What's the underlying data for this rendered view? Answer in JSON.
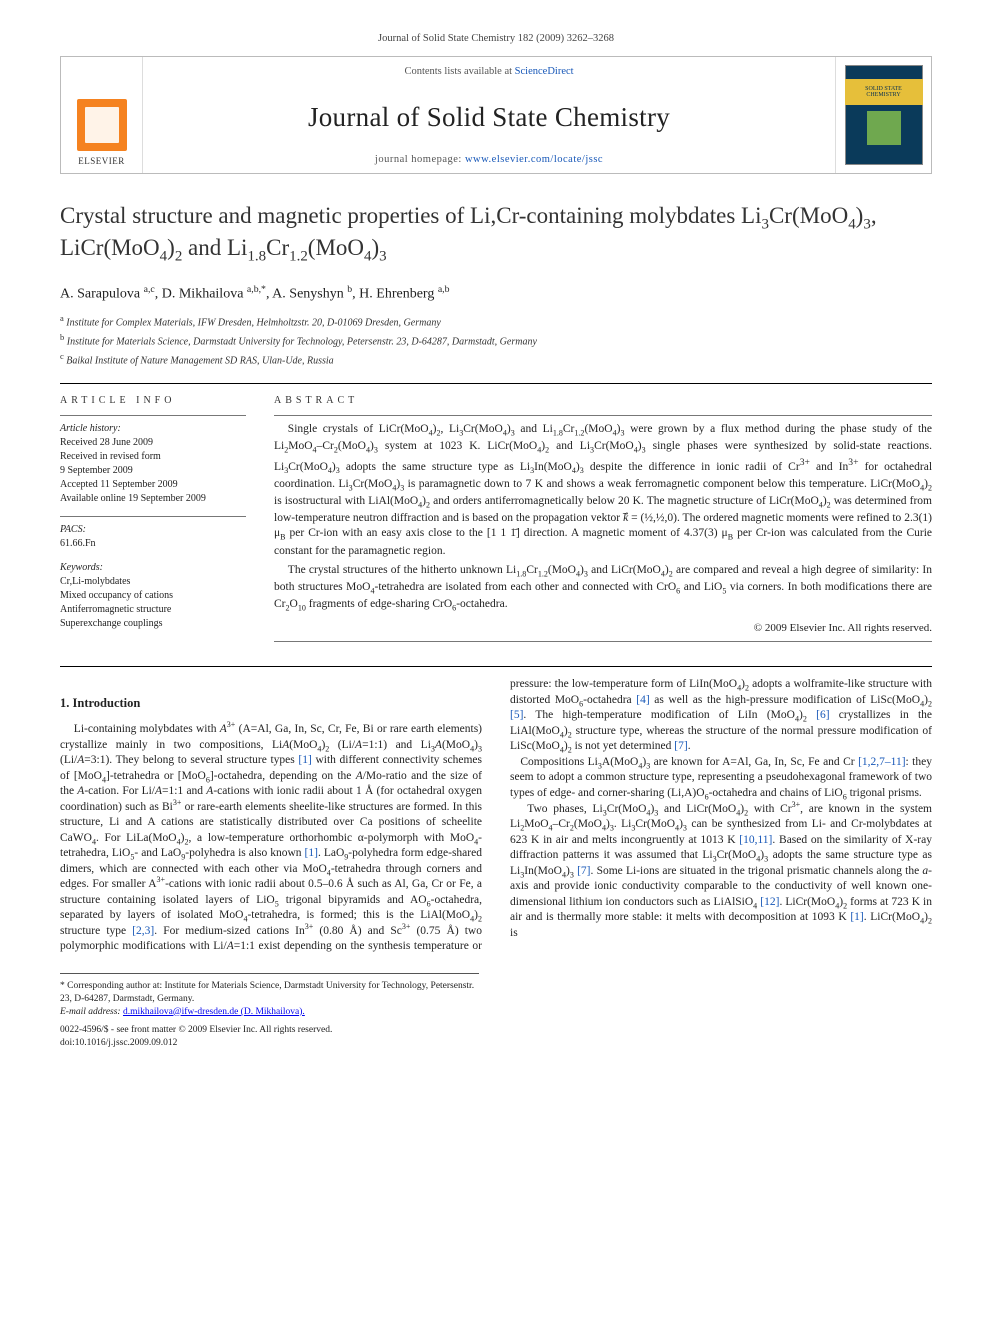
{
  "topref": "Journal of Solid State Chemistry 182 (2009) 3262–3268",
  "masthead": {
    "contents_prefix": "Contents lists available at ",
    "contents_link": "ScienceDirect",
    "journal": "Journal of Solid State Chemistry",
    "homepage_prefix": "journal homepage: ",
    "homepage_link": "www.elsevier.com/locate/jssc",
    "publisher": "ELSEVIER",
    "cover_label": "SOLID STATE CHEMISTRY"
  },
  "title_html": "Crystal structure and magnetic properties of Li,Cr-containing molybdates Li<sub>3</sub>Cr(MoO<sub>4</sub>)<sub>3</sub>, LiCr(MoO<sub>4</sub>)<sub>2</sub> and Li<sub>1.8</sub>Cr<sub>1.2</sub>(MoO<sub>4</sub>)<sub>3</sub>",
  "authors_html": "A. Sarapulova <sup>a,c</sup>, D. Mikhailova <sup>a,b,*</sup>, A. Senyshyn <sup>b</sup>, H. Ehrenberg <sup>a,b</sup>",
  "affiliations": [
    "a Institute for Complex Materials, IFW Dresden, Helmholtzstr. 20, D-01069 Dresden, Germany",
    "b Institute for Materials Science, Darmstadt University for Technology, Petersenstr. 23, D-64287, Darmstadt, Germany",
    "c Baikal Institute of Nature Management SD RAS, Ulan-Ude, Russia"
  ],
  "article_info_label": "ARTICLE INFO",
  "abstract_label": "ABSTRACT",
  "history_label": "Article history:",
  "history": [
    "Received 28 June 2009",
    "Received in revised form",
    "9 September 2009",
    "Accepted 11 September 2009",
    "Available online 19 September 2009"
  ],
  "pacs_label": "PACS:",
  "pacs": "61.66.Fn",
  "keywords_label": "Keywords:",
  "keywords": [
    "Cr,Li-molybdates",
    "Mixed occupancy of cations",
    "Antiferromagnetic structure",
    "Superexchange couplings"
  ],
  "abstract_paragraphs": [
    "Single crystals of LiCr(MoO<sub>4</sub>)<sub>2</sub>, Li<sub>3</sub>Cr(MoO<sub>4</sub>)<sub>3</sub> and Li<sub>1.8</sub>Cr<sub>1.2</sub>(MoO<sub>4</sub>)<sub>3</sub> were grown by a flux method during the phase study of the Li<sub>2</sub>MoO<sub>4</sub>–Cr<sub>2</sub>(MoO<sub>4</sub>)<sub>3</sub> system at 1023 K. LiCr(MoO<sub>4</sub>)<sub>2</sub> and Li<sub>3</sub>Cr(MoO<sub>4</sub>)<sub>3</sub> single phases were synthesized by solid-state reactions. Li<sub>3</sub>Cr(MoO<sub>4</sub>)<sub>3</sub> adopts the same structure type as Li<sub>3</sub>In(MoO<sub>4</sub>)<sub>3</sub> despite the difference in ionic radii of Cr<sup>3+</sup> and In<sup>3+</sup> for octahedral coordination. Li<sub>3</sub>Cr(MoO<sub>4</sub>)<sub>3</sub> is paramagnetic down to 7 K and shows a weak ferromagnetic component below this temperature. LiCr(MoO<sub>4</sub>)<sub>2</sub> is isostructural with LiAl(MoO<sub>4</sub>)<sub>2</sub> and orders antiferromagnetically below 20 K. The magnetic structure of LiCr(MoO<sub>4</sub>)<sub>2</sub> was determined from low-temperature neutron diffraction and is based on the propagation vektor <i>k</i>⃗ = (½,½,0). The ordered magnetic moments were refined to 2.3(1) μ<sub>B</sub> per Cr-ion with an easy axis close to the [1 1 1̄] direction. A magnetic moment of 4.37(3) μ<sub>B</sub> per Cr-ion was calculated from the Curie constant for the paramagnetic region.",
    "The crystal structures of the hitherto unknown Li<sub>1.8</sub>Cr<sub>1.2</sub>(MoO<sub>4</sub>)<sub>3</sub> and LiCr(MoO<sub>4</sub>)<sub>2</sub> are compared and reveal a high degree of similarity: In both structures MoO<sub>4</sub>-tetrahedra are isolated from each other and connected with CrO<sub>6</sub> and LiO<sub>5</sub> via corners. In both modifications there are Cr<sub>2</sub>O<sub>10</sub> fragments of edge-sharing CrO<sub>6</sub>-octahedra."
  ],
  "copyright": "© 2009 Elsevier Inc. All rights reserved.",
  "section1_head": "1. Introduction",
  "intro_html": "Li-containing molybdates with <i>A</i><sup>3+</sup> (A=Al, Ga, In, Sc, Cr, Fe, Bi or rare earth elements) crystallize mainly in two compositions, Li<i>A</i>(MoO<sub>4</sub>)<sub>2</sub> (Li/<i>A</i>=1:1) and Li<sub>3</sub><i>A</i>(MoO<sub>4</sub>)<sub>3</sub> (Li/<i>A</i>=3:1). They belong to several structure types <a class=\"ref\">[1]</a> with different connectivity schemes of [MoO<sub>4</sub>]-tetrahedra or [MoO<sub>6</sub>]-octahedra, depending on the <i>A</i>/Mo-ratio and the size of the <i>A</i>-cation. For Li/<i>A</i>=1:1 and <i>A</i>-cations with ionic radii about 1 Å (for octahedral oxygen coordination) such as Bi<sup>3+</sup> or rare-earth elements sheelite-like structures are formed. In this structure, Li and A cations are statistically distributed over Ca positions of scheelite CaWO<sub>4</sub>. For LiLa(MoO<sub>4</sub>)<sub>2</sub>, a low-temperature orthorhombic α-polymorph with MoO<sub>4</sub>-tetrahedra, LiO<sub>5</sub>- and LaO<sub>9</sub>-polyhedra is also known <a class=\"ref\">[1]</a>. LaO<sub>9</sub>-polyhedra form edge-shared dimers, which are connected with each other via MoO<sub>4</sub>-tetrahedra through corners and edges. For smaller A<sup>3+</sup>-cations with ionic radii about 0.5–0.6 Å such as Al, Ga, Cr or Fe, a structure containing isolated layers of LiO<sub>5</sub> trigonal bipyramids and AO<sub>6</sub>-octahedra, separated by layers of isolated MoO<sub>4</sub>-tetrahedra, is formed; this is the LiAl(MoO<sub>4</sub>)<sub>2</sub> structure type <a class=\"ref\">[2,3]</a>. For medium-sized cations In<sup>3+</sup> (0.80 Å) and Sc<sup>3+</sup> (0.75 Å) two polymorphic modifications with Li/<i>A</i>=1:1 exist depending on the synthesis temperature or pressure: the low-temperature form of LiIn(MoO<sub>4</sub>)<sub>2</sub> adopts a wolframite-like structure with distorted MoO<sub>6</sub>-octahedra <a class=\"ref\">[4]</a> as well as the high-pressure modification of LiSc(MoO<sub>4</sub>)<sub>2</sub> <a class=\"ref\">[5]</a>. The high-temperature modification of LiIn (MoO<sub>4</sub>)<sub>2</sub> <a class=\"ref\">[6]</a> crystallizes in the LiAl(MoO<sub>4</sub>)<sub>2</sub> structure type, whereas the structure of the normal pressure modification of LiSc(MoO<sub>4</sub>)<sub>2</sub> is not yet determined <a class=\"ref\">[7]</a>.<br>&nbsp;&nbsp;&nbsp;Compositions Li<sub>3</sub>A(MoO<sub>4</sub>)<sub>3</sub> are known for A=Al, Ga, In, Sc, Fe and Cr <a class=\"ref\">[1,2,7–11]</a>: they seem to adopt a common structure type, representing a pseudohexagonal framework of two types of edge- and corner-sharing (Li,A)O<sub>6</sub>-octahedra and chains of LiO<sub>6</sub> trigonal prisms.<br>&nbsp;&nbsp;&nbsp;Two phases, Li<sub>3</sub>Cr(MoO<sub>4</sub>)<sub>3</sub> and LiCr(MoO<sub>4</sub>)<sub>2</sub> with Cr<sup>3+</sup>, are known in the system Li<sub>2</sub>MoO<sub>4</sub>–Cr<sub>2</sub>(MoO<sub>4</sub>)<sub>3</sub>. Li<sub>3</sub>Cr(MoO<sub>4</sub>)<sub>3</sub> can be synthesized from Li- and Cr-molybdates at 623 K in air and melts incongruently at 1013 K <a class=\"ref\">[10,11]</a>. Based on the similarity of X-ray diffraction patterns it was assumed that Li<sub>3</sub>Cr(MoO<sub>4</sub>)<sub>3</sub> adopts the same structure type as Li<sub>3</sub>In(MoO<sub>4</sub>)<sub>3</sub> <a class=\"ref\">[7]</a>. Some Li-ions are situated in the trigonal prismatic channels along the <i>a</i>-axis and provide ionic conductivity comparable to the conductivity of well known one-dimensional lithium ion conductors such as LiAlSiO<sub>4</sub> <a class=\"ref\">[12]</a>. LiCr(MoO<sub>4</sub>)<sub>2</sub> forms at 723 K in air and is thermally more stable: it melts with decomposition at 1093 K <a class=\"ref\">[1]</a>. LiCr(MoO<sub>4</sub>)<sub>2</sub> is",
  "footnote": {
    "corr": "* Corresponding author at: Institute for Materials Science, Darmstadt University for Technology, Petersenstr. 23, D-64287, Darmstadt, Germany.",
    "email_label": "E-mail address:",
    "email": "d.mikhailova@ifw-dresden.de (D. Mikhailova).",
    "issn": "0022-4596/$ - see front matter © 2009 Elsevier Inc. All rights reserved.",
    "doi": "doi:10.1016/j.jssc.2009.09.012"
  },
  "colors": {
    "link": "#1858b8",
    "elsevier_orange": "#f58220",
    "cover_bg": "#0a3a5a",
    "cover_band": "#e6bf3a",
    "cover_img": "#6fa84f"
  }
}
